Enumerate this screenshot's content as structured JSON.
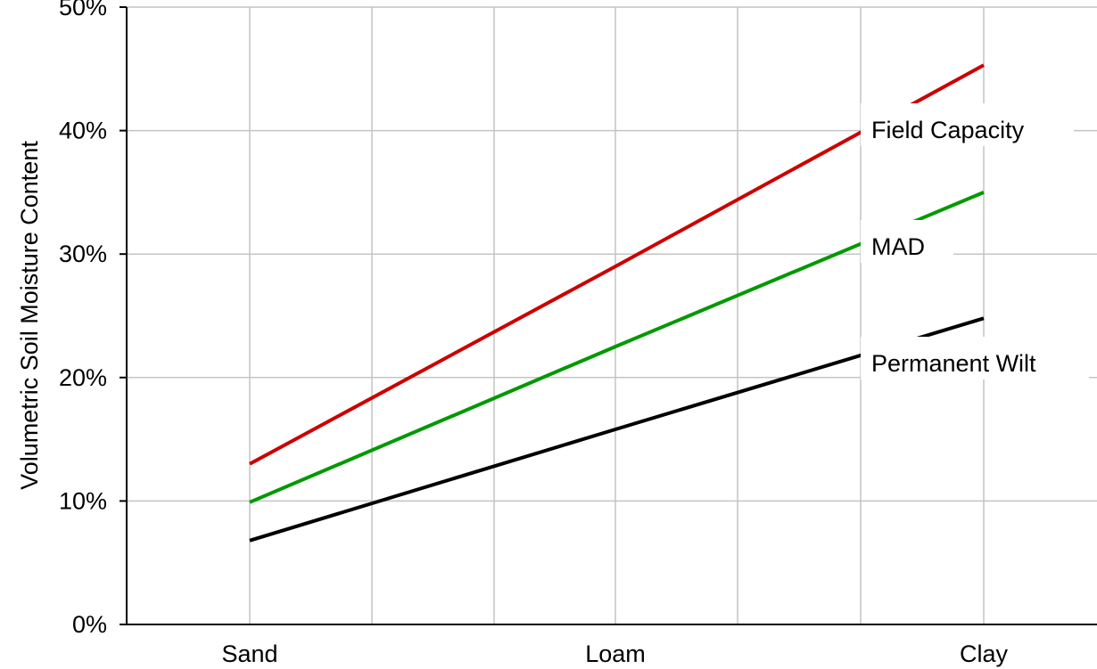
{
  "chart_data": {
    "type": "line",
    "categories": [
      "Sand",
      "Loam",
      "Clay"
    ],
    "x_gridlines": 7,
    "ylabel": "Volumetric Soil Moisture Content",
    "ylim": [
      0,
      50
    ],
    "yticks": [
      0,
      10,
      20,
      30,
      40,
      50
    ],
    "ytick_labels": [
      "0%",
      "10%",
      "20%",
      "30%",
      "40%",
      "50%"
    ],
    "grid": true,
    "legend": "none",
    "series": [
      {
        "name": "Field Capacity",
        "color": "#cc0000",
        "values": [
          13,
          29,
          45.3
        ]
      },
      {
        "name": "MAD",
        "color": "#009900",
        "values": [
          9.9,
          22.5,
          35
        ]
      },
      {
        "name": "Permanent Wilt",
        "color": "#000000",
        "values": [
          6.8,
          15.8,
          24.8
        ]
      }
    ]
  }
}
